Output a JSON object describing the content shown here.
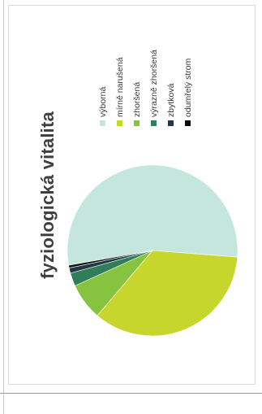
{
  "chart_data": {
    "type": "pie",
    "title": "fyziologická vitalita",
    "categories": [
      "výborná",
      "mírně narušená",
      "zhoršená",
      "výrazně zhoršená",
      "zbytková",
      "odumřelý strom"
    ],
    "values": [
      54,
      35,
      7,
      2.5,
      1,
      0.5
    ],
    "colors": [
      "#c5e6dc",
      "#c6d62c",
      "#86c440",
      "#2f7d59",
      "#1f3a44",
      "#0a0a0a"
    ],
    "legend_position": "right"
  }
}
